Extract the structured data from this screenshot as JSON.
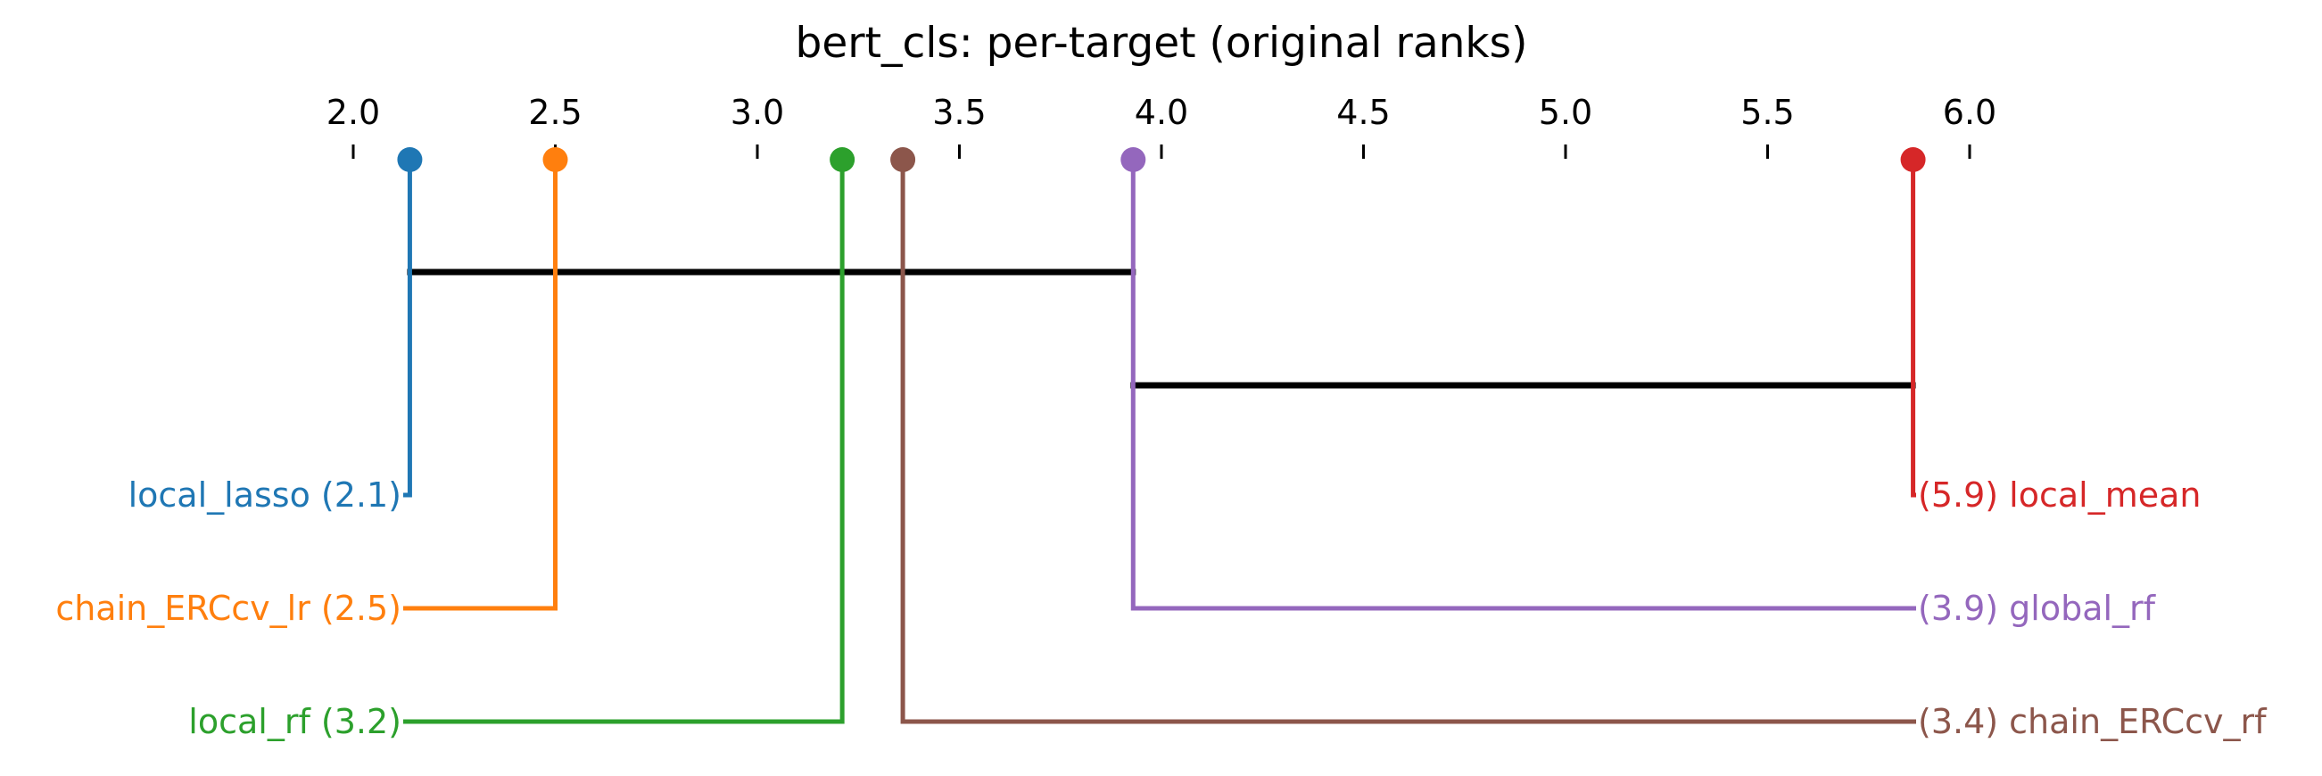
{
  "chart_data": {
    "type": "critical-difference",
    "title": "bert_cls: per-target (original ranks)",
    "axis": {
      "range": [
        2.0,
        6.0
      ],
      "ticks": [
        2.0,
        2.5,
        3.0,
        3.5,
        4.0,
        4.5,
        5.0,
        5.5,
        6.0
      ],
      "tick_labels": [
        "2.0",
        "2.5",
        "3.0",
        "3.5",
        "4.0",
        "4.5",
        "5.0",
        "5.5",
        "6.0"
      ],
      "position": "top"
    },
    "methods": [
      {
        "name": "local_lasso",
        "rank": 2.14,
        "label": "local_lasso (2.1)",
        "side": "left",
        "color": "#1f77b4"
      },
      {
        "name": "chain_ERCcv_lr",
        "rank": 2.5,
        "label": "chain_ERCcv_lr (2.5)",
        "side": "left",
        "color": "#ff7f0e"
      },
      {
        "name": "local_rf",
        "rank": 3.21,
        "label": "local_rf (3.2)",
        "side": "left",
        "color": "#2ca02c"
      },
      {
        "name": "chain_ERCcv_rf",
        "rank": 3.36,
        "label": "(3.4) chain_ERCcv_rf",
        "side": "right",
        "color": "#8c564b"
      },
      {
        "name": "global_rf",
        "rank": 3.93,
        "label": "(3.9) global_rf",
        "side": "right",
        "color": "#9467bd"
      },
      {
        "name": "local_mean",
        "rank": 5.86,
        "label": "(5.9) local_mean",
        "side": "right",
        "color": "#d62728"
      }
    ],
    "cliques": [
      {
        "from": 2.14,
        "to": 3.93
      },
      {
        "from": 3.93,
        "to": 5.86
      }
    ]
  }
}
